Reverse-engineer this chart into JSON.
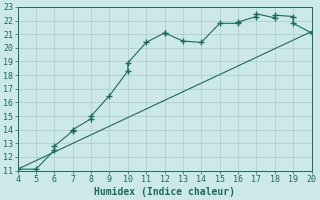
{
  "title": "",
  "xlabel": "Humidex (Indice chaleur)",
  "ylabel": "",
  "bg_color": "#cce8e8",
  "grid_color": "#aacccc",
  "line_color": "#1a6b5e",
  "marker_color": "#1a6b5e",
  "xlim": [
    4,
    20
  ],
  "ylim": [
    11,
    23
  ],
  "xticks": [
    4,
    5,
    6,
    7,
    8,
    9,
    10,
    11,
    12,
    13,
    14,
    15,
    16,
    17,
    18,
    19,
    20
  ],
  "yticks": [
    11,
    12,
    13,
    14,
    15,
    16,
    17,
    18,
    19,
    20,
    21,
    22,
    23
  ],
  "curve_x": [
    4,
    5,
    6,
    6,
    7,
    7,
    8,
    8,
    9,
    10,
    10,
    11,
    12,
    12,
    13,
    14,
    15,
    16,
    16,
    17,
    17,
    18,
    18,
    19,
    19,
    20
  ],
  "curve_y": [
    11.1,
    11.1,
    12.5,
    12.8,
    13.9,
    14.0,
    14.8,
    15.0,
    16.5,
    18.3,
    18.9,
    20.4,
    21.1,
    21.1,
    20.5,
    20.4,
    21.8,
    21.8,
    21.9,
    22.3,
    22.5,
    22.2,
    22.4,
    22.3,
    21.8,
    21.1
  ],
  "line_x": [
    4,
    20
  ],
  "line_y": [
    11.1,
    21.2
  ],
  "font_color": "#1a6b5e",
  "tick_fontsize": 6,
  "label_fontsize": 7
}
